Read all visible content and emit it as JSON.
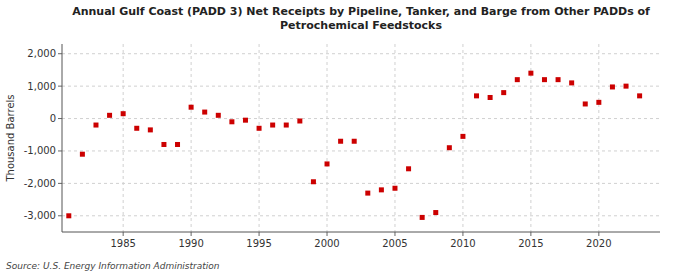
{
  "chart_data": {
    "type": "scatter",
    "title": "Annual Gulf Coast (PADD 3) Net Receipts by Pipeline, Tanker, and Barge from Other PADDs of\nPetrochemical Feedstocks",
    "y_label": "Thousand Barrels",
    "annotations": [
      "Source: U.S. Energy Information Administration"
    ],
    "x": [
      1981,
      1982,
      1983,
      1984,
      1985,
      1986,
      1987,
      1988,
      1989,
      1990,
      1991,
      1992,
      1993,
      1994,
      1995,
      1996,
      1997,
      1998,
      1999,
      2000,
      2001,
      2002,
      2003,
      2004,
      2005,
      2006,
      2007,
      2008,
      2009,
      2010,
      2011,
      2012,
      2013,
      2014,
      2015,
      2016,
      2017,
      2018,
      2019,
      2020,
      2021,
      2022,
      2023
    ],
    "values": [
      -3000,
      -1100,
      -200,
      100,
      150,
      -300,
      -350,
      -800,
      -800,
      350,
      200,
      100,
      -100,
      -50,
      -300,
      -200,
      -200,
      -75,
      -1950,
      -1400,
      -700,
      -700,
      -2300,
      -2200,
      -2150,
      -1550,
      -3050,
      -2900,
      -900,
      -550,
      700,
      650,
      800,
      1200,
      1400,
      1200,
      1200,
      1100,
      450,
      500,
      975,
      1000,
      700
    ],
    "color": "#cc0000",
    "marker": "square",
    "xlim": [
      1980.5,
      2024.5
    ],
    "xticks": [
      1985,
      1990,
      1995,
      2000,
      2005,
      2010,
      2015,
      2020
    ],
    "ylim": [
      -3500,
      2300
    ],
    "yticks": [
      {
        "value": -3000,
        "label": "-3,000"
      },
      {
        "value": -2000,
        "label": "-2,000"
      },
      {
        "value": -1000,
        "label": "-1,000"
      },
      0,
      {
        "value": 1000,
        "label": "1,000"
      },
      {
        "value": 2000,
        "label": "2,000"
      }
    ],
    "grid": true
  }
}
